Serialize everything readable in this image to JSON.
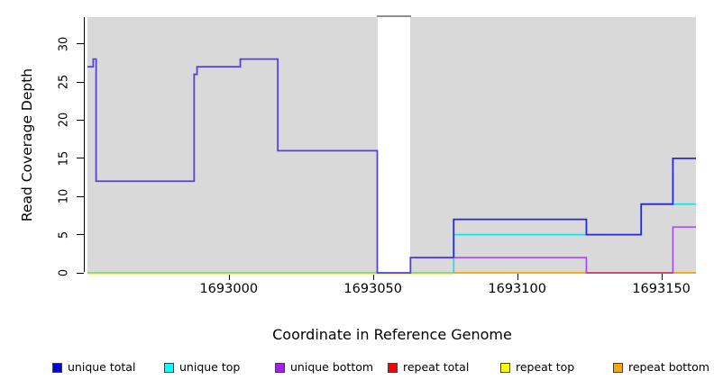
{
  "axes": {
    "y_label": "Read Coverage Depth",
    "x_label": "Coordinate in Reference Genome",
    "y_ticks": [
      {
        "value": 0,
        "label": "0"
      },
      {
        "value": 5,
        "label": "5"
      },
      {
        "value": 10,
        "label": "10"
      },
      {
        "value": 15,
        "label": "15"
      },
      {
        "value": 20,
        "label": "20"
      },
      {
        "value": 25,
        "label": "25"
      },
      {
        "value": 30,
        "label": "30"
      }
    ],
    "x_ticks": [
      {
        "value": 1693000,
        "label": "1693000"
      },
      {
        "value": 1693050,
        "label": "1693050"
      },
      {
        "value": 1693100,
        "label": "1693100"
      },
      {
        "value": 1693150,
        "label": "1693150"
      }
    ]
  },
  "chart_data": {
    "type": "line",
    "subtype": "step-coverage",
    "title": "",
    "xlabel": "Coordinate in Reference Genome",
    "ylabel": "Read Coverage Depth",
    "xlim": [
      1692951,
      1693162
    ],
    "ylim": [
      0,
      33.5
    ],
    "grid": false,
    "plot_background": "#d9d9d9",
    "gap_region": {
      "from": 1693051.5,
      "to": 1693062.8,
      "fill": "#ffffff",
      "cap_color": "#8e8e8e",
      "note": "white vertical band with gray cap at top (missing background region)"
    },
    "series": [
      {
        "name": "baseline-under-yellow",
        "legend": "repeat top (at zero)",
        "color": "#f0ef9a",
        "width": 1.4,
        "points": [
          [
            1692951,
            -0.18
          ],
          [
            1693078,
            -0.18
          ]
        ]
      },
      {
        "name": "baseline-green",
        "legend": "overlapped zero baseline",
        "color": "#7dc87d",
        "width": 1.6,
        "points": [
          [
            1692951,
            0
          ],
          [
            1693078,
            0
          ]
        ]
      },
      {
        "name": "repeat-bottom",
        "legend": "repeat bottom",
        "color": "#ff9d00",
        "width": 1.8,
        "points": [
          [
            1693078,
            0
          ],
          [
            1693162,
            0
          ]
        ]
      },
      {
        "name": "unique-bottom",
        "legend": "unique bottom",
        "color": "#a348e8",
        "width": 1.6,
        "points": [
          [
            1693063,
            0
          ],
          [
            1693063,
            2
          ],
          [
            1693124,
            0
          ],
          [
            1693154,
            6
          ],
          [
            1693162,
            6
          ]
        ]
      },
      {
        "name": "repeat-total",
        "legend": "repeat total (at zero)",
        "color": "#cc3a6a",
        "width": 1.6,
        "points": [
          [
            1693124,
            0
          ],
          [
            1693154,
            0
          ]
        ]
      },
      {
        "name": "unique-top",
        "legend": "unique top",
        "color": "#16dee8",
        "width": 1.6,
        "points": [
          [
            1693078,
            0
          ],
          [
            1693078,
            5
          ],
          [
            1693143,
            9
          ],
          [
            1693162,
            9
          ]
        ]
      },
      {
        "name": "unique-total-left",
        "legend": "unique total (overlaps unique bottom)",
        "color": "#5742d8",
        "width": 1.8,
        "points": [
          [
            1692951,
            27
          ],
          [
            1692953,
            28
          ],
          [
            1692954,
            12
          ],
          [
            1692988,
            26
          ],
          [
            1692989,
            27
          ],
          [
            1693004,
            28
          ],
          [
            1693017,
            16
          ],
          [
            1693051.5,
            0
          ],
          [
            1693063,
            2
          ],
          [
            1693078,
            2
          ]
        ]
      },
      {
        "name": "unique-total-right",
        "legend": "unique total",
        "color": "#2727e0",
        "width": 1.8,
        "points": [
          [
            1693078,
            2
          ],
          [
            1693078,
            7
          ],
          [
            1693124,
            5
          ],
          [
            1693143,
            9
          ],
          [
            1693154,
            15
          ],
          [
            1693162,
            15
          ]
        ]
      }
    ],
    "legend": {
      "position": "bottom",
      "items": [
        {
          "label": "unique total",
          "color": "#0000ee"
        },
        {
          "label": "unique top",
          "color": "#00ffff"
        },
        {
          "label": "unique bottom",
          "color": "#a020f0"
        },
        {
          "label": "repeat total",
          "color": "#ff0000"
        },
        {
          "label": "repeat top",
          "color": "#ffff00"
        },
        {
          "label": "repeat bottom",
          "color": "#ffa500"
        }
      ]
    }
  }
}
